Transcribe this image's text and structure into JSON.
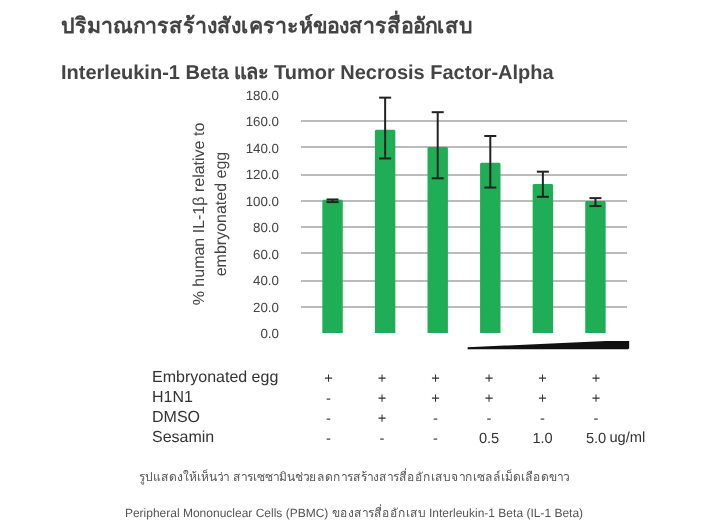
{
  "chart_data": {
    "type": "bar",
    "title": "ปริมาณการสร้างสังเคราะห์ของสารสื่ออักเสบ",
    "subtitle": "Interleukin-1 Beta และ Tumor Necrosis Factor-Alpha",
    "ylabel": "% human IL-1β relative to\nembryonated egg",
    "categories": [
      null,
      null,
      null,
      null,
      null,
      null
    ],
    "values": [
      100,
      153,
      140,
      128,
      112,
      99
    ],
    "errors": [
      [
        99,
        101
      ],
      [
        132,
        178
      ],
      [
        117,
        167
      ],
      [
        110,
        149
      ],
      [
        103,
        122
      ],
      [
        96,
        102
      ]
    ],
    "color": "#1fad55",
    "ylim": [
      0,
      180
    ],
    "yticks": [
      {
        "value": 0,
        "label": "0.0"
      },
      {
        "value": 20,
        "label": "20.0"
      },
      {
        "value": 40,
        "label": "40.0"
      },
      {
        "value": 60,
        "label": "60.0"
      },
      {
        "value": 80,
        "label": "80.0"
      },
      {
        "value": 100,
        "label": "100.0"
      },
      {
        "value": 120,
        "label": "120.0"
      },
      {
        "value": 140,
        "label": "140.0"
      },
      {
        "value": 160,
        "label": "160.0"
      },
      {
        "value": 180,
        "label": "180.0"
      }
    ],
    "grid": "y",
    "annotations": [
      "Embryonated egg",
      "H1N1",
      "DMSO",
      "Sesamin",
      "+",
      "+",
      "+",
      "+",
      "+",
      "+",
      "-",
      "+",
      "+",
      "+",
      "+",
      "+",
      "-",
      "+",
      "-",
      "-",
      "-",
      "-",
      "-",
      "-",
      "-",
      "0.5",
      "1.0",
      "5.0",
      "ug/ml",
      "รูปแสดงให้เห็นว่า สารเซซามินช่วยลดการสร้างสารสื่ออักเสบจากเซลล์เม็ดเลือดขาว",
      "Peripheral Mononuclear Cells (PBMC) ของสารสื่ออักเสบ Interleukin-1 Beta (IL-1 Beta)"
    ]
  }
}
